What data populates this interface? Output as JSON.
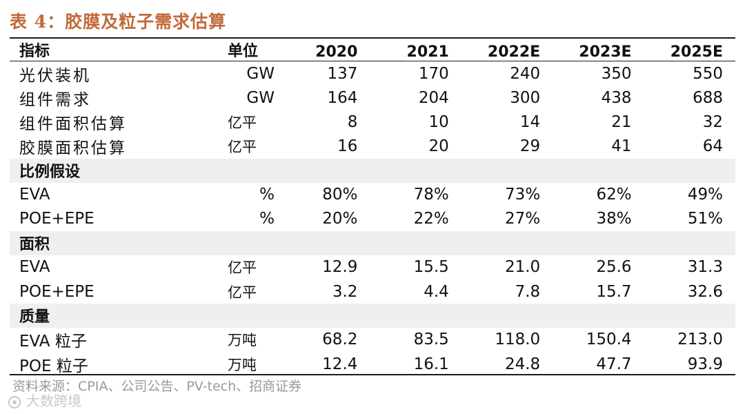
{
  "title": "表 4：胶膜及粒子需求估算",
  "headers": {
    "indicator": "指标",
    "unit": "单位",
    "years": [
      "2020",
      "2021",
      "2022E",
      "2023E",
      "2025E"
    ]
  },
  "rows": [
    {
      "label": "光伏装机",
      "unit": "GW",
      "values": [
        "137",
        "170",
        "240",
        "350",
        "550"
      ]
    },
    {
      "label": "组件需求",
      "unit": "GW",
      "values": [
        "164",
        "204",
        "300",
        "438",
        "688"
      ]
    },
    {
      "label": "组件面积估算",
      "unit": "亿平",
      "values": [
        "8",
        "10",
        "14",
        "21",
        "32"
      ]
    },
    {
      "label": "胶膜面积估算",
      "unit": "亿平",
      "values": [
        "16",
        "20",
        "29",
        "41",
        "64"
      ]
    }
  ],
  "sections": [
    {
      "title": "比例假设",
      "rows": [
        {
          "label": "EVA",
          "unit": "%",
          "values": [
            "80%",
            "78%",
            "73%",
            "62%",
            "49%"
          ]
        },
        {
          "label": "POE+EPE",
          "unit": "%",
          "values": [
            "20%",
            "22%",
            "27%",
            "38%",
            "51%"
          ]
        }
      ]
    },
    {
      "title": "面积",
      "rows": [
        {
          "label": "EVA",
          "unit": "亿平",
          "values": [
            "12.9",
            "15.5",
            "21.0",
            "25.6",
            "31.3"
          ]
        },
        {
          "label": "POE+EPE",
          "unit": "亿平",
          "values": [
            "3.2",
            "4.4",
            "7.8",
            "15.7",
            "32.6"
          ]
        }
      ]
    },
    {
      "title": "质量",
      "rows": [
        {
          "label": "EVA 粒子",
          "unit": "万吨",
          "values": [
            "68.2",
            "83.5",
            "118.0",
            "150.4",
            "213.0"
          ]
        },
        {
          "label": "POE 粒子",
          "unit": "万吨",
          "values": [
            "12.4",
            "16.1",
            "24.8",
            "47.7",
            "93.9"
          ]
        }
      ]
    }
  ],
  "source": "资料来源：CPIA、公司公告、PV-tech、招商证券",
  "watermark": "大数跨境",
  "colors": {
    "title": "#c26a3a",
    "section_band": "#efefef"
  }
}
